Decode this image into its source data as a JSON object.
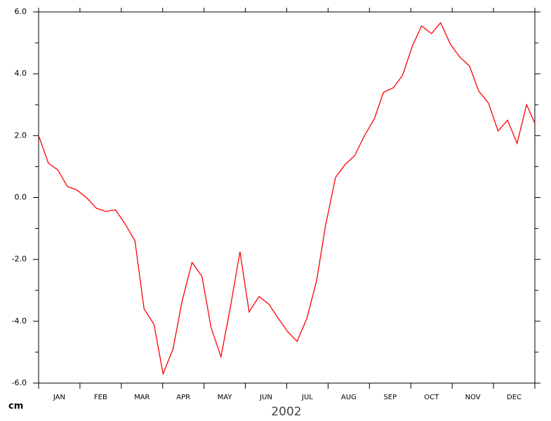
{
  "chart_data": {
    "type": "line",
    "xlabel": "2002",
    "ylabel": "cm",
    "x": [
      0,
      0.24,
      0.46,
      0.7,
      0.92,
      1.17,
      1.4,
      1.63,
      1.86,
      2.09,
      2.33,
      2.55,
      2.79,
      3.01,
      3.25,
      3.47,
      3.71,
      3.95,
      4.17,
      4.41,
      4.63,
      4.87,
      5.09,
      5.33,
      5.57,
      5.79,
      6.03,
      6.25,
      6.49,
      6.72,
      6.94,
      7.18,
      7.4,
      7.64,
      7.88,
      8.12,
      8.34,
      8.58,
      8.8,
      9.04,
      9.26,
      9.5,
      9.72,
      9.96,
      10.18,
      10.42,
      10.64,
      10.88,
      11.11,
      11.34,
      11.57,
      11.8,
      12
    ],
    "series": [
      {
        "color": "#ff0000",
        "values": [
          2.0,
          1.1,
          0.9,
          0.35,
          0.25,
          -0.02,
          -0.35,
          -0.45,
          -0.4,
          -0.85,
          -1.4,
          -3.6,
          -4.1,
          -5.7,
          -4.9,
          -3.35,
          -2.1,
          -2.55,
          -4.2,
          -5.15,
          -3.6,
          -1.75,
          -3.7,
          -3.2,
          -3.45,
          -3.9,
          -4.35,
          -4.65,
          -3.9,
          -2.7,
          -0.9,
          0.65,
          1.05,
          1.35,
          2.0,
          2.55,
          3.4,
          3.55,
          3.95,
          4.9,
          5.55,
          5.3,
          5.65,
          4.95,
          4.55,
          4.25,
          3.45,
          3.05,
          2.15,
          2.5,
          1.75,
          3.0,
          2.4
        ]
      }
    ],
    "xlim": [
      0,
      12
    ],
    "xticks": [
      {
        "value": 0.5,
        "label": "JAN"
      },
      {
        "value": 1.5,
        "label": "FEB"
      },
      {
        "value": 2.5,
        "label": "MAR"
      },
      {
        "value": 3.5,
        "label": "APR"
      },
      {
        "value": 4.5,
        "label": "MAY"
      },
      {
        "value": 5.5,
        "label": "JUN"
      },
      {
        "value": 6.5,
        "label": "JUL"
      },
      {
        "value": 7.5,
        "label": "AUG"
      },
      {
        "value": 8.5,
        "label": "SEP"
      },
      {
        "value": 9.5,
        "label": "OCT"
      },
      {
        "value": 10.5,
        "label": "NOV"
      },
      {
        "value": 11.5,
        "label": "DEC"
      }
    ],
    "xtick_marks": [
      0,
      1,
      2,
      3,
      4,
      5,
      6,
      7,
      8,
      9,
      10,
      11,
      12
    ],
    "ylim": [
      -6,
      6
    ],
    "yticks": [
      {
        "value": 6,
        "label": "6.0"
      },
      {
        "value": 4,
        "label": "4.0"
      },
      {
        "value": 2,
        "label": "2.0"
      },
      {
        "value": 0,
        "label": "0.0"
      },
      {
        "value": -2,
        "label": "-2.0"
      },
      {
        "value": -4,
        "label": "-4.0"
      },
      {
        "value": -6,
        "label": "-6.0"
      }
    ],
    "yminorticks": [
      5,
      3,
      1,
      -1,
      -3,
      -5
    ],
    "grid": false
  }
}
